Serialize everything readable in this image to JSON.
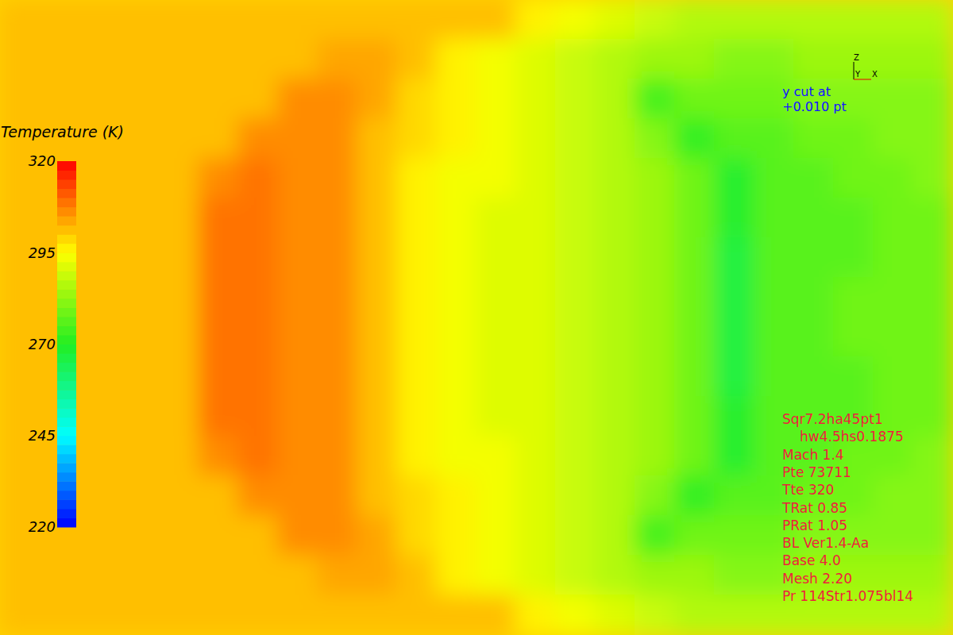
{
  "chart_data": {
    "type": "heatmap",
    "title": "Temperature (K)",
    "tick_labels": false,
    "cells": [
      [
        300,
        300,
        300,
        300,
        300,
        300,
        300,
        300,
        300,
        300,
        300,
        300,
        300,
        296,
        293,
        290,
        288,
        287,
        286,
        286,
        285,
        285,
        285,
        285
      ],
      [
        300,
        300,
        300,
        300,
        300,
        300,
        300,
        300,
        304,
        304,
        300,
        297,
        294,
        291,
        288,
        285,
        284,
        283,
        282,
        282,
        283,
        283,
        284,
        284
      ],
      [
        300,
        300,
        300,
        300,
        300,
        300,
        300,
        306,
        305,
        303,
        299,
        296,
        293,
        290,
        288,
        285,
        274,
        279,
        278,
        279,
        280,
        281,
        281,
        282
      ],
      [
        300,
        300,
        300,
        300,
        300,
        300,
        307,
        307,
        305,
        302,
        298,
        295,
        293,
        291,
        289,
        286,
        282,
        270,
        276,
        277,
        278,
        279,
        280,
        281
      ],
      [
        300,
        300,
        300,
        300,
        300,
        307,
        308,
        307,
        305,
        301,
        297,
        294,
        293,
        291,
        289,
        286,
        283,
        278,
        268,
        276,
        277,
        278,
        279,
        280
      ],
      [
        300,
        300,
        300,
        300,
        300,
        308,
        308,
        307,
        305,
        301,
        297,
        294,
        292,
        291,
        289,
        286,
        283,
        279,
        268,
        275,
        276,
        277,
        278,
        279
      ],
      [
        300,
        300,
        300,
        300,
        301,
        308,
        308,
        307,
        305,
        301,
        297,
        294,
        292,
        290,
        288,
        286,
        283,
        279,
        266,
        275,
        276,
        277,
        278,
        279
      ],
      [
        300,
        300,
        300,
        300,
        302,
        309,
        308,
        307,
        305,
        301,
        297,
        294,
        292,
        290,
        288,
        285,
        283,
        279,
        266,
        276,
        277,
        278,
        278,
        279
      ],
      [
        300,
        300,
        300,
        300,
        302,
        309,
        308,
        307,
        305,
        301,
        297,
        294,
        292,
        290,
        288,
        285,
        283,
        279,
        266,
        276,
        277,
        278,
        278,
        279
      ],
      [
        300,
        300,
        300,
        300,
        301,
        308,
        308,
        307,
        305,
        301,
        297,
        294,
        292,
        290,
        288,
        286,
        283,
        279,
        266,
        275,
        276,
        277,
        278,
        279
      ],
      [
        300,
        300,
        300,
        300,
        300,
        308,
        308,
        307,
        305,
        301,
        297,
        294,
        292,
        291,
        289,
        286,
        283,
        279,
        268,
        275,
        276,
        277,
        278,
        279
      ],
      [
        300,
        300,
        300,
        300,
        300,
        307,
        308,
        307,
        305,
        301,
        297,
        294,
        293,
        291,
        289,
        286,
        283,
        278,
        268,
        276,
        277,
        278,
        279,
        280
      ],
      [
        300,
        300,
        300,
        300,
        300,
        300,
        307,
        307,
        305,
        302,
        298,
        295,
        293,
        291,
        289,
        286,
        282,
        270,
        276,
        277,
        278,
        279,
        280,
        281
      ],
      [
        300,
        300,
        300,
        300,
        300,
        300,
        300,
        306,
        305,
        303,
        299,
        296,
        293,
        290,
        288,
        285,
        274,
        279,
        278,
        279,
        280,
        281,
        281,
        282
      ],
      [
        300,
        300,
        300,
        300,
        300,
        300,
        300,
        300,
        304,
        304,
        300,
        297,
        294,
        291,
        288,
        285,
        284,
        283,
        282,
        282,
        283,
        283,
        284,
        284
      ],
      [
        300,
        300,
        300,
        300,
        300,
        300,
        300,
        300,
        300,
        300,
        300,
        300,
        300,
        296,
        293,
        290,
        288,
        287,
        286,
        286,
        285,
        285,
        285,
        285
      ]
    ],
    "colorbar": {
      "range": [
        220,
        320
      ],
      "ticks": [
        220,
        245,
        270,
        295,
        320
      ]
    },
    "annotations": {
      "axes": [
        "Z",
        "Y",
        "X"
      ],
      "cut": [
        "y cut at",
        "+0.010 pt"
      ],
      "case": [
        "Sqr7.2ha45pt1",
        "hw4.5hs0.1875",
        "Mach 1.4",
        "Pte 73711",
        "Tte 320",
        "TRat 0.85",
        "PRat 1.05",
        "BL Ver1.4-Aa",
        "Base 4.0",
        "Mesh 2.20",
        "Pr 114Str1.075bl14"
      ]
    }
  }
}
